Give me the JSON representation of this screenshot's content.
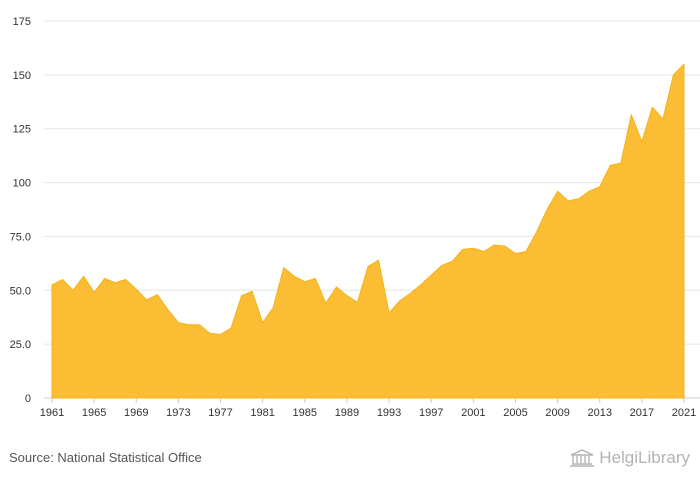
{
  "colors": {
    "area_fill": "#fbbd33",
    "area_stroke": "#f4b21b",
    "grid": "#e6e6e6",
    "text": "#333333",
    "brand": "#b3b3b3"
  },
  "source_text": "Source: National Statistical Office",
  "brand": {
    "name": "HelgiLibrary",
    "icon": "library-building-icon"
  },
  "chart_data": {
    "type": "area",
    "title": "",
    "xlabel": "",
    "ylabel": "",
    "ylim": [
      0,
      175
    ],
    "xlim": [
      1961,
      2021
    ],
    "grid": true,
    "legend": "none",
    "yticks": [
      0,
      25,
      50,
      75,
      100,
      125,
      150,
      175
    ],
    "ytick_labels": [
      "0",
      "25.0",
      "50.0",
      "75.0",
      "100",
      "125",
      "150",
      "175"
    ],
    "xticks": [
      1961,
      1965,
      1969,
      1973,
      1977,
      1981,
      1985,
      1989,
      1993,
      1997,
      2001,
      2005,
      2009,
      2013,
      2017,
      2021
    ],
    "xtick_labels": [
      "1961",
      "1965",
      "1969",
      "1973",
      "1977",
      "1981",
      "1985",
      "1989",
      "1993",
      "1997",
      "2001",
      "2005",
      "2009",
      "2013",
      "2017",
      "2021"
    ],
    "x": [
      1961,
      1962,
      1963,
      1964,
      1965,
      1966,
      1967,
      1968,
      1969,
      1970,
      1971,
      1972,
      1973,
      1974,
      1975,
      1976,
      1977,
      1978,
      1979,
      1980,
      1981,
      1982,
      1983,
      1984,
      1985,
      1986,
      1987,
      1988,
      1989,
      1990,
      1991,
      1992,
      1993,
      1994,
      1995,
      1996,
      1997,
      1998,
      1999,
      2000,
      2001,
      2002,
      2003,
      2004,
      2005,
      2006,
      2007,
      2008,
      2009,
      2010,
      2011,
      2012,
      2013,
      2014,
      2015,
      2016,
      2017,
      2018,
      2019,
      2020,
      2021
    ],
    "values": [
      52.5,
      55,
      50,
      56.5,
      49,
      55.5,
      53.5,
      55,
      50.5,
      45.5,
      48,
      41,
      35,
      34,
      34,
      30,
      29.5,
      32.5,
      47.5,
      49.5,
      35,
      42,
      60.5,
      56.5,
      54,
      55.5,
      44,
      51.5,
      47.5,
      44.5,
      61,
      64,
      39.5,
      45,
      48.5,
      52.5,
      57,
      61.5,
      63.5,
      69,
      69.5,
      68,
      71,
      70.5,
      67,
      68,
      77,
      87.5,
      96,
      91.5,
      92.5,
      96,
      98,
      108,
      109,
      131.5,
      119,
      135,
      129.5,
      150,
      155
    ]
  }
}
